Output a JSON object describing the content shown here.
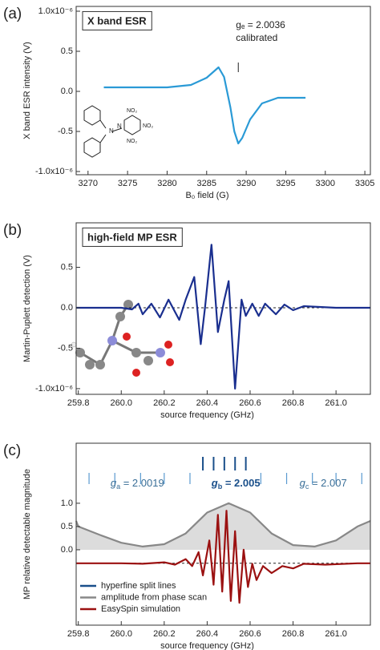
{
  "chart_data": [
    {
      "type": "line",
      "panel": "(a)",
      "title": "X band ESR",
      "xlabel": "B₀ field (G)",
      "ylabel": "X band ESR intensity (V)",
      "xlim": [
        3268.5,
        3305.7
      ],
      "ylim": [
        -1.04,
        1.06
      ],
      "xticks": [
        3270,
        3275,
        3280,
        3285,
        3290,
        3295,
        3300,
        3305
      ],
      "yticks": [
        {
          "value": 1,
          "label": "1.0x10⁻⁶"
        },
        0.5,
        {
          "value": 0,
          "label": "0.0"
        },
        -0.5,
        {
          "value": -1,
          "label": "-1.0x10⁻⁶"
        }
      ],
      "series": [
        {
          "name": "X band ESR",
          "color": "#2a9ad6",
          "x": [
            3272,
            3276,
            3280,
            3283,
            3285,
            3286.5,
            3287.2,
            3288,
            3288.5,
            3289,
            3289.5,
            3290.5,
            3292,
            3294,
            3297.5
          ],
          "values": [
            0.05,
            0.05,
            0.05,
            0.08,
            0.17,
            0.3,
            0.18,
            -0.2,
            -0.5,
            -0.65,
            -0.58,
            -0.35,
            -0.15,
            -0.08,
            -0.08
          ]
        }
      ],
      "annotations": [
        "gₑ = 2.0036",
        "calibrated"
      ],
      "marker_x": 3289,
      "structure_labels": [
        "N",
        "N",
        "NO₂",
        "NO₂",
        "NO₂"
      ]
    },
    {
      "type": "line",
      "panel": "(b)",
      "title": "high-field MP ESR",
      "xlabel": "source frequency (GHz)",
      "ylabel": "Martin-Puplett detection (V)",
      "xlim": [
        259.79,
        261.16
      ],
      "ylim": [
        -1.07,
        1.05
      ],
      "xticks": [
        259.8,
        {
          "value": 260,
          "label": "260.0"
        },
        260.2,
        260.4,
        260.6,
        260.8,
        {
          "value": 261,
          "label": "261.0"
        }
      ],
      "yticks": [
        0.5,
        {
          "value": 0,
          "label": "0.0"
        },
        -0.5,
        {
          "value": -1,
          "label": "-1.0x10⁻⁶"
        }
      ],
      "reference_line": 0,
      "series": [
        {
          "name": "high-field MP ESR",
          "color": "#1a2f8f",
          "x": [
            259.79,
            260.0,
            260.05,
            260.08,
            260.1,
            260.14,
            260.18,
            260.22,
            260.27,
            260.3,
            260.34,
            260.37,
            260.39,
            260.42,
            260.45,
            260.48,
            260.5,
            260.53,
            260.56,
            260.58,
            260.61,
            260.64,
            260.67,
            260.72,
            260.76,
            260.8,
            260.85,
            261.0,
            261.16
          ],
          "values": [
            0,
            0,
            -0.02,
            0.05,
            -0.08,
            0.05,
            -0.12,
            0.1,
            -0.15,
            0.1,
            0.38,
            -0.45,
            0,
            0.78,
            -0.3,
            0.1,
            0.33,
            -1.0,
            0.1,
            -0.1,
            0.05,
            -0.1,
            0.05,
            -0.08,
            0.04,
            -0.03,
            0.02,
            0,
            0
          ]
        }
      ]
    },
    {
      "type": "line",
      "panel": "(c)",
      "xlabel": "source frequency (GHz)",
      "ylabel": "MP relative detectable magnitude",
      "xlim": [
        259.79,
        261.16
      ],
      "ylim": [
        -1.62,
        2.29
      ],
      "xticks": [
        259.8,
        {
          "value": 260,
          "label": "260.0"
        },
        260.2,
        260.4,
        260.6,
        260.8,
        {
          "value": 261,
          "label": "261.0"
        }
      ],
      "yticks": [
        {
          "value": 1,
          "label": "1.0"
        },
        0.5,
        {
          "value": 0,
          "label": "0.0"
        }
      ],
      "reference_line": -0.29,
      "hyperfine_lines": {
        "name": "hyperfine split lines",
        "color": "#1a4f8a",
        "outer_color": "#5a9ad0",
        "center": [
          260.38,
          260.43,
          260.48,
          260.53,
          260.58
        ],
        "outer": [
          259.85,
          259.97,
          260.09,
          260.2,
          260.32,
          260.65,
          260.77,
          260.89,
          261.0,
          261.12
        ]
      },
      "g_labels": [
        {
          "symbol": "g",
          "sub": "a",
          "text": " = 2.0019"
        },
        {
          "symbol": "g",
          "sub": "b",
          "text": " = 2.005"
        },
        {
          "symbol": "g",
          "sub": "c",
          "text": " = 2.007"
        }
      ],
      "series": [
        {
          "name": "amplitude from phase scan",
          "color": "#888888",
          "fill": "#dcdcdc",
          "x": [
            259.79,
            259.8,
            259.9,
            260.0,
            260.1,
            260.2,
            260.3,
            260.4,
            260.5,
            260.6,
            260.7,
            260.8,
            260.9,
            261.0,
            261.1,
            261.16
          ],
          "values": [
            0.62,
            0.5,
            0.32,
            0.15,
            0.07,
            0.12,
            0.35,
            0.8,
            1.0,
            0.8,
            0.35,
            0.1,
            0.07,
            0.2,
            0.5,
            0.62
          ]
        },
        {
          "name": "EasySpin simulation",
          "color": "#9b1111",
          "x": [
            259.79,
            260.0,
            260.1,
            260.2,
            260.25,
            260.3,
            260.33,
            260.36,
            260.38,
            260.41,
            260.43,
            260.45,
            260.47,
            260.49,
            260.51,
            260.53,
            260.55,
            260.57,
            260.59,
            260.61,
            260.63,
            260.66,
            260.7,
            260.75,
            260.8,
            260.85,
            260.95,
            261.1,
            261.16
          ],
          "values": [
            -0.29,
            -0.29,
            -0.3,
            -0.27,
            -0.32,
            -0.2,
            -0.35,
            -0.05,
            -0.55,
            0.2,
            -0.75,
            0.75,
            -0.9,
            0.84,
            -1.1,
            0.4,
            -1.14,
            0.0,
            -0.8,
            -0.3,
            -0.65,
            -0.35,
            -0.5,
            -0.35,
            -0.4,
            -0.3,
            -0.32,
            -0.29,
            -0.29
          ]
        }
      ]
    }
  ]
}
